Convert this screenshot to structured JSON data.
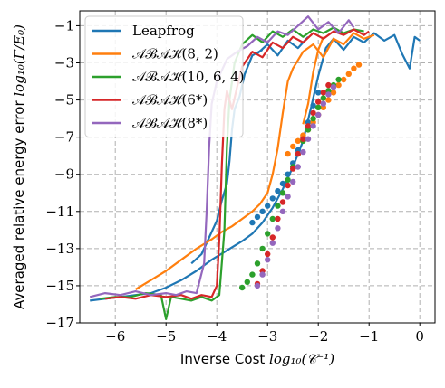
{
  "chart_data": {
    "type": "line",
    "xlabel_parts": {
      "prefix": "Inverse Cost ",
      "math": "log₁₀(𝒞⁻¹)"
    },
    "ylabel_parts": {
      "prefix": "Averaged relative energy error ",
      "math": "log₁₀(Γ/E₀)"
    },
    "xlim": [
      -6.7,
      0.3
    ],
    "ylim": [
      -17,
      -0.2
    ],
    "x_ticks": [
      -6,
      -5,
      -4,
      -3,
      -2,
      -1,
      0
    ],
    "x_tick_labels": [
      "−6",
      "−5",
      "−4",
      "−3",
      "−2",
      "−1",
      "0"
    ],
    "y_ticks": [
      -17,
      -15,
      -13,
      -11,
      -9,
      -7,
      -5,
      -3,
      -1
    ],
    "y_tick_labels": [
      "−17",
      "−15",
      "−13",
      "−11",
      "−9",
      "−7",
      "−5",
      "−3",
      "−1"
    ],
    "grid": true,
    "legend_position": "top-left",
    "series": [
      {
        "name": "Leapfrog",
        "color": "#1f77b4",
        "lines": [
          [
            [
              -6.5,
              -15.8
            ],
            [
              -6.2,
              -15.7
            ],
            [
              -5.9,
              -15.6
            ],
            [
              -5.6,
              -15.5
            ],
            [
              -5.3,
              -15.4
            ],
            [
              -5.0,
              -15.1
            ],
            [
              -4.7,
              -14.7
            ],
            [
              -4.4,
              -14.2
            ],
            [
              -4.1,
              -13.6
            ],
            [
              -3.8,
              -13.1
            ],
            [
              -3.5,
              -12.6
            ],
            [
              -3.3,
              -12.2
            ],
            [
              -3.1,
              -11.6
            ],
            [
              -2.9,
              -10.8
            ],
            [
              -2.7,
              -9.8
            ],
            [
              -2.5,
              -8.6
            ],
            [
              -2.3,
              -7.2
            ],
            [
              -2.15,
              -5.5
            ],
            [
              -2.0,
              -3.7
            ],
            [
              -1.85,
              -2.2
            ],
            [
              -1.7,
              -1.7
            ],
            [
              -1.5,
              -2.3
            ],
            [
              -1.3,
              -1.6
            ],
            [
              -1.1,
              -1.9
            ],
            [
              -0.9,
              -1.4
            ],
            [
              -0.7,
              -1.8
            ],
            [
              -0.5,
              -1.5
            ],
            [
              -0.35,
              -2.5
            ],
            [
              -0.2,
              -3.3
            ],
            [
              -0.1,
              -1.6
            ],
            [
              0.0,
              -1.8
            ]
          ],
          [
            [
              -4.5,
              -13.8
            ],
            [
              -4.3,
              -13.3
            ],
            [
              -4.15,
              -12.4
            ],
            [
              -4.0,
              -11.5
            ],
            [
              -3.9,
              -10.4
            ],
            [
              -3.8,
              -9.5
            ],
            [
              -3.75,
              -8.3
            ],
            [
              -3.7,
              -6.6
            ],
            [
              -3.65,
              -5.5
            ],
            [
              -3.55,
              -4.8
            ],
            [
              -3.45,
              -3.6
            ],
            [
              -3.3,
              -2.6
            ],
            [
              -3.1,
              -2.3
            ]
          ],
          [
            [
              -3.2,
              -2.5
            ],
            [
              -3.0,
              -2.0
            ],
            [
              -2.8,
              -2.6
            ],
            [
              -2.6,
              -1.8
            ],
            [
              -2.4,
              -2.2
            ],
            [
              -2.2,
              -1.6
            ]
          ]
        ],
        "points": [
          [
            -3.3,
            -11.6
          ],
          [
            -3.2,
            -11.3
          ],
          [
            -3.1,
            -11.0
          ],
          [
            -3.0,
            -10.7
          ],
          [
            -2.9,
            -10.3
          ],
          [
            -2.8,
            -9.9
          ],
          [
            -2.7,
            -9.5
          ],
          [
            -2.6,
            -9.0
          ],
          [
            -2.5,
            -8.4
          ],
          [
            -2.4,
            -7.7
          ],
          [
            -2.3,
            -7.0
          ],
          [
            -2.2,
            -6.2
          ],
          [
            -2.1,
            -5.3
          ],
          [
            -2.0,
            -4.6
          ]
        ]
      },
      {
        "name": "𝒜ℬ𝒜ℋ(8, 2)",
        "color": "#ff7f0e",
        "lines": [
          [
            [
              -5.6,
              -15.2
            ],
            [
              -5.3,
              -14.7
            ],
            [
              -5.0,
              -14.2
            ],
            [
              -4.7,
              -13.6
            ],
            [
              -4.4,
              -13.0
            ],
            [
              -4.1,
              -12.5
            ],
            [
              -3.9,
              -12.1
            ],
            [
              -3.7,
              -11.8
            ],
            [
              -3.5,
              -11.4
            ],
            [
              -3.3,
              -11.0
            ],
            [
              -3.15,
              -10.6
            ],
            [
              -3.0,
              -10.0
            ],
            [
              -2.9,
              -9.0
            ],
            [
              -2.8,
              -7.6
            ],
            [
              -2.7,
              -5.7
            ],
            [
              -2.6,
              -4.0
            ],
            [
              -2.5,
              -3.3
            ],
            [
              -2.3,
              -2.4
            ],
            [
              -2.1,
              -2.0
            ],
            [
              -1.9,
              -2.7
            ],
            [
              -1.7,
              -1.7
            ],
            [
              -1.5,
              -2.0
            ],
            [
              -1.3,
              -1.4
            ],
            [
              -1.1,
              -1.7
            ],
            [
              -0.9,
              -1.5
            ]
          ],
          [
            [
              -2.3,
              -6.3
            ],
            [
              -2.2,
              -5.2
            ],
            [
              -2.1,
              -3.5
            ],
            [
              -2.0,
              -2.3
            ],
            [
              -1.9,
              -1.6
            ]
          ]
        ],
        "points": [
          [
            -2.6,
            -7.9
          ],
          [
            -2.5,
            -7.5
          ],
          [
            -2.4,
            -7.2
          ],
          [
            -2.3,
            -6.9
          ],
          [
            -2.2,
            -6.6
          ],
          [
            -2.1,
            -6.2
          ],
          [
            -2.0,
            -5.8
          ],
          [
            -1.9,
            -5.4
          ],
          [
            -1.8,
            -5.0
          ],
          [
            -1.7,
            -4.6
          ],
          [
            -1.6,
            -4.2
          ],
          [
            -1.5,
            -3.9
          ],
          [
            -1.4,
            -3.6
          ],
          [
            -1.3,
            -3.3
          ],
          [
            -1.2,
            -3.1
          ]
        ]
      },
      {
        "name": "𝒜ℬ𝒜ℋ(10, 6, 4)",
        "color": "#2ca02c",
        "lines": [
          [
            [
              -6.3,
              -15.7
            ],
            [
              -6.0,
              -15.6
            ],
            [
              -5.7,
              -15.6
            ],
            [
              -5.4,
              -15.4
            ],
            [
              -5.1,
              -15.5
            ],
            [
              -5.0,
              -16.8
            ],
            [
              -4.9,
              -15.6
            ],
            [
              -4.7,
              -15.7
            ],
            [
              -4.5,
              -15.8
            ],
            [
              -4.3,
              -15.6
            ],
            [
              -4.1,
              -15.8
            ],
            [
              -3.95,
              -15.5
            ],
            [
              -3.85,
              -12.0
            ],
            [
              -3.8,
              -7.5
            ],
            [
              -3.75,
              -5.0
            ],
            [
              -3.65,
              -3.0
            ],
            [
              -3.5,
              -2.0
            ],
            [
              -3.3,
              -1.5
            ],
            [
              -3.1,
              -1.9
            ],
            [
              -2.9,
              -1.3
            ],
            [
              -2.7,
              -1.6
            ],
            [
              -2.5,
              -1.2
            ],
            [
              -2.3,
              -1.6
            ],
            [
              -2.1,
              -1.2
            ],
            [
              -1.9,
              -1.4
            ],
            [
              -1.7,
              -1.1
            ],
            [
              -1.5,
              -1.4
            ],
            [
              -1.3,
              -1.2
            ],
            [
              -1.1,
              -1.3
            ]
          ]
        ],
        "points": [
          [
            -3.5,
            -15.1
          ],
          [
            -3.4,
            -14.8
          ],
          [
            -3.3,
            -14.4
          ],
          [
            -3.2,
            -13.8
          ],
          [
            -3.1,
            -13.0
          ],
          [
            -3.0,
            -12.2
          ],
          [
            -2.9,
            -11.4
          ],
          [
            -2.8,
            -10.7
          ],
          [
            -2.7,
            -10.0
          ],
          [
            -2.6,
            -9.3
          ],
          [
            -2.5,
            -8.6
          ],
          [
            -2.4,
            -7.9
          ],
          [
            -2.3,
            -7.2
          ],
          [
            -2.2,
            -6.6
          ],
          [
            -2.1,
            -6.0
          ],
          [
            -2.0,
            -5.4
          ],
          [
            -1.9,
            -4.9
          ],
          [
            -1.8,
            -4.5
          ],
          [
            -1.7,
            -4.2
          ],
          [
            -1.6,
            -3.9
          ]
        ]
      },
      {
        "name": "𝒜ℬ𝒜ℋ(6*)",
        "color": "#d62728",
        "lines": [
          [
            [
              -6.2,
              -15.7
            ],
            [
              -5.9,
              -15.6
            ],
            [
              -5.6,
              -15.7
            ],
            [
              -5.3,
              -15.5
            ],
            [
              -5.0,
              -15.6
            ],
            [
              -4.7,
              -15.5
            ],
            [
              -4.5,
              -15.7
            ],
            [
              -4.3,
              -15.5
            ],
            [
              -4.1,
              -15.6
            ],
            [
              -4.0,
              -15.0
            ],
            [
              -3.95,
              -12.5
            ],
            [
              -3.9,
              -8.5
            ],
            [
              -3.85,
              -5.5
            ],
            [
              -3.8,
              -4.5
            ],
            [
              -3.7,
              -5.5
            ],
            [
              -3.6,
              -4.3
            ],
            [
              -3.5,
              -3.2
            ],
            [
              -3.3,
              -2.4
            ],
            [
              -3.1,
              -2.7
            ],
            [
              -2.9,
              -1.9
            ],
            [
              -2.7,
              -2.2
            ],
            [
              -2.5,
              -1.6
            ],
            [
              -2.3,
              -1.9
            ],
            [
              -2.1,
              -1.4
            ],
            [
              -1.9,
              -1.7
            ],
            [
              -1.7,
              -1.3
            ],
            [
              -1.5,
              -1.5
            ],
            [
              -1.3,
              -1.2
            ],
            [
              -1.1,
              -1.5
            ],
            [
              -1.0,
              -1.3
            ]
          ]
        ],
        "points": [
          [
            -3.2,
            -14.9
          ],
          [
            -3.1,
            -14.2
          ],
          [
            -3.0,
            -13.3
          ],
          [
            -2.9,
            -12.4
          ],
          [
            -2.8,
            -11.4
          ],
          [
            -2.7,
            -10.5
          ],
          [
            -2.6,
            -9.6
          ],
          [
            -2.5,
            -8.7
          ],
          [
            -2.4,
            -7.9
          ],
          [
            -2.3,
            -7.1
          ],
          [
            -2.2,
            -6.4
          ],
          [
            -2.1,
            -5.7
          ],
          [
            -2.0,
            -5.1
          ],
          [
            -1.9,
            -4.6
          ],
          [
            -1.8,
            -4.2
          ]
        ]
      },
      {
        "name": "𝒜ℬ𝒜ℋ(8*)",
        "color": "#9467bd",
        "lines": [
          [
            [
              -6.5,
              -15.6
            ],
            [
              -6.2,
              -15.4
            ],
            [
              -5.9,
              -15.5
            ],
            [
              -5.6,
              -15.3
            ],
            [
              -5.3,
              -15.5
            ],
            [
              -5.0,
              -15.4
            ],
            [
              -4.8,
              -15.5
            ],
            [
              -4.6,
              -15.3
            ],
            [
              -4.4,
              -15.4
            ],
            [
              -4.25,
              -13.8
            ],
            [
              -4.2,
              -11.0
            ],
            [
              -4.15,
              -7.5
            ],
            [
              -4.1,
              -5.2
            ],
            [
              -4.0,
              -4.0
            ],
            [
              -3.8,
              -2.8
            ],
            [
              -3.6,
              -2.4
            ],
            [
              -3.4,
              -2.1
            ],
            [
              -3.2,
              -1.6
            ],
            [
              -3.0,
              -1.9
            ],
            [
              -2.8,
              -1.3
            ],
            [
              -2.6,
              -1.5
            ],
            [
              -2.4,
              -1.0
            ],
            [
              -2.2,
              -0.5
            ],
            [
              -2.0,
              -1.2
            ],
            [
              -1.8,
              -0.8
            ],
            [
              -1.6,
              -1.4
            ],
            [
              -1.4,
              -0.7
            ],
            [
              -1.3,
              -1.1
            ]
          ]
        ],
        "points": [
          [
            -3.2,
            -15.0
          ],
          [
            -3.1,
            -14.4
          ],
          [
            -3.0,
            -13.6
          ],
          [
            -2.9,
            -12.7
          ],
          [
            -2.8,
            -11.9
          ],
          [
            -2.7,
            -11.0
          ],
          [
            -2.6,
            -10.2
          ],
          [
            -2.5,
            -9.4
          ],
          [
            -2.4,
            -8.6
          ],
          [
            -2.3,
            -7.8
          ],
          [
            -2.2,
            -7.1
          ],
          [
            -2.1,
            -6.4
          ],
          [
            -2.0,
            -5.8
          ],
          [
            -1.9,
            -5.2
          ],
          [
            -1.8,
            -4.7
          ],
          [
            -1.7,
            -4.3
          ]
        ]
      }
    ]
  }
}
